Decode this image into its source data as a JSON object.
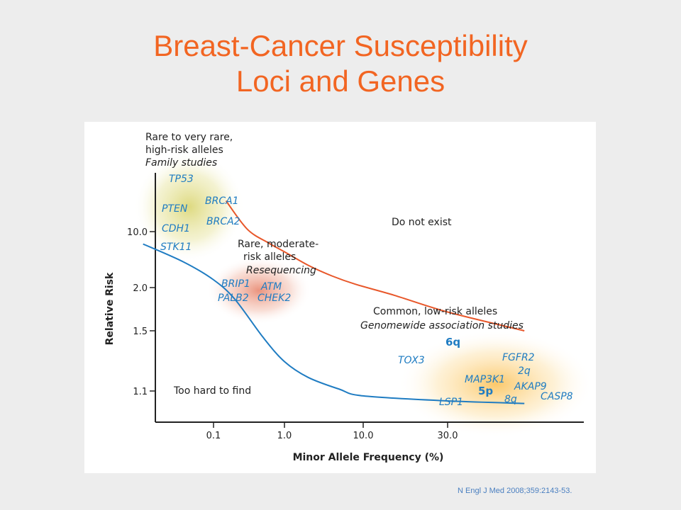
{
  "slide": {
    "title_line1": "Breast-Cancer Susceptibility",
    "title_line2": "Loci and Genes",
    "citation": "N Engl J Med 2008;359:2143-53."
  },
  "colors": {
    "title": "#f26522",
    "upper_curve": "#e8572a",
    "lower_curve": "#1f7cc2",
    "gene_label": "#1f7cc2",
    "background": "#ededed"
  },
  "chart_data": {
    "type": "line",
    "xlabel": "Minor Allele Frequency (%)",
    "ylabel": "Relative Risk",
    "x_ticks": [
      "0.1",
      "1.0",
      "10.0",
      "30.0"
    ],
    "y_ticks": [
      "1.1",
      "1.5",
      "2.0",
      "10.0"
    ],
    "series": [
      {
        "id": "upper-bound",
        "x": [
          0.15,
          0.3,
          0.6,
          1.0,
          2.0,
          4.0,
          8.0,
          15.0,
          30.0,
          60.0
        ],
        "y": [
          13.0,
          10.2,
          7.2,
          5.6,
          3.8,
          2.8,
          2.2,
          1.9,
          1.7,
          1.5
        ]
      },
      {
        "id": "lower-bound",
        "x": [
          0.02,
          0.05,
          0.1,
          0.2,
          0.5,
          1.0,
          2.0,
          5.0,
          10.0,
          30.0,
          60.0
        ],
        "y": [
          7.0,
          4.2,
          2.5,
          1.85,
          1.45,
          1.28,
          1.18,
          1.11,
          1.08,
          1.06,
          1.05
        ]
      }
    ],
    "regions": [
      {
        "id": "rare-high-risk",
        "heading": [
          "Rare to very rare,",
          "high-risk alleles"
        ],
        "subheading": "Family studies",
        "genes": [
          "TP53",
          "PTEN",
          "BRCA1",
          "BRCA2",
          "CDH1",
          "STK11"
        ]
      },
      {
        "id": "rare-moderate-risk",
        "heading": [
          "Rare, moderate-",
          "risk alleles"
        ],
        "subheading": "Resequencing",
        "genes": [
          "BRIP1",
          "ATM",
          "PALB2",
          "CHEK2"
        ]
      },
      {
        "id": "common-low-risk",
        "heading": [
          "Common, low-risk alleles"
        ],
        "subheading": "Genomewide association studies",
        "genes": [
          "6q",
          "TOX3",
          "FGFR2",
          "2q",
          "MAP3K1",
          "5p",
          "AKAP9",
          "8q",
          "CASP8",
          "LSP1"
        ]
      }
    ],
    "annotations": [
      "Do not exist",
      "Too hard to find"
    ]
  }
}
